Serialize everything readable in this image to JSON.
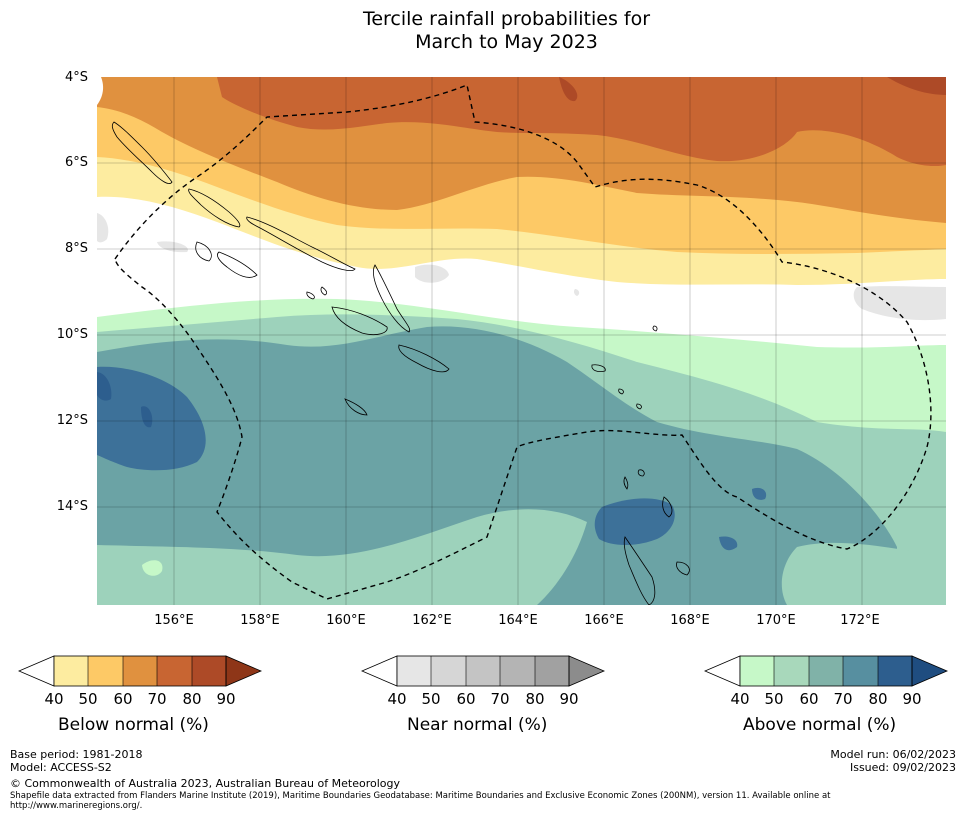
{
  "title": {
    "line1": "Tercile rainfall probabilities for",
    "line2": "March to May 2023"
  },
  "map": {
    "lat_labels": [
      "4°S",
      "6°S",
      "8°S",
      "10°S",
      "12°S",
      "14°S"
    ],
    "lon_labels": [
      "156°E",
      "158°E",
      "160°E",
      "162°E",
      "164°E",
      "166°E",
      "168°E",
      "170°E",
      "172°E"
    ],
    "colors": {
      "below": [
        "#fdeca0",
        "#fdc966",
        "#e0913f",
        "#c86532",
        "#ad4a27",
        "#8e3618"
      ],
      "near": [
        "#e6e6e6",
        "#d6d6d6",
        "#c4c4c4",
        "#a9a9a9",
        "#8c8c8c"
      ],
      "above": [
        "#c6f8c8",
        "#9dd2bb",
        "#6ba3a5",
        "#3d7199",
        "#2d5e8e",
        "#1f4d80"
      ],
      "coast": "#000000"
    }
  },
  "legends": [
    {
      "title": "Below normal (%)",
      "ticks": [
        "40",
        "50",
        "60",
        "70",
        "80",
        "90"
      ]
    },
    {
      "title": "Near normal (%)",
      "ticks": [
        "40",
        "50",
        "60",
        "70",
        "80",
        "90"
      ]
    },
    {
      "title": "Above normal (%)",
      "ticks": [
        "40",
        "50",
        "60",
        "70",
        "80",
        "90"
      ]
    }
  ],
  "footer": {
    "base_period": "Base period: 1981-2018",
    "model": "Model: ACCESS-S2",
    "model_run": "Model run: 06/02/2023",
    "issued": "Issued: 09/02/2023",
    "copyright": "© Commonwealth of Australia 2023, Australian Bureau of Meteorology",
    "shapefile": "Shapefile data extracted from Flanders Marine Institute (2019), Maritime Boundaries Geodatabase: Maritime Boundaries and Exclusive Economic Zones (200NM), version 11. Available online at http://www.marineregions.org/."
  }
}
